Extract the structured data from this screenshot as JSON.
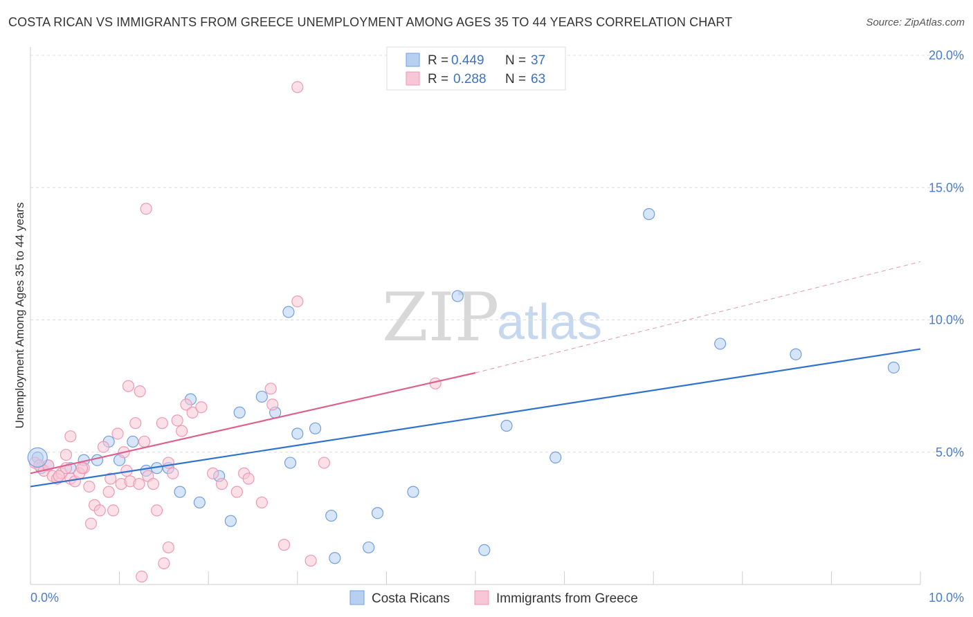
{
  "title": "COSTA RICAN VS IMMIGRANTS FROM GREECE UNEMPLOYMENT AMONG AGES 35 TO 44 YEARS CORRELATION CHART",
  "source": "Source: ZipAtlas.com",
  "watermark": {
    "zip": "ZIP",
    "atlas": "atlas"
  },
  "chart_data": {
    "type": "scatter",
    "xlabel": "",
    "ylabel": "Unemployment Among Ages 35 to 44 years",
    "xlim": [
      0,
      10
    ],
    "ylim": [
      0,
      20
    ],
    "x_tick_labels": {
      "left": "0.0%",
      "right": "10.0%"
    },
    "y_ticks": [
      {
        "value": 5,
        "label": "5.0%"
      },
      {
        "value": 10,
        "label": "10.0%"
      },
      {
        "value": 15,
        "label": "15.0%"
      },
      {
        "value": 20,
        "label": "20.0%"
      }
    ],
    "legend": {
      "position": "top-center",
      "entries": [
        {
          "r_label": "R =",
          "r": "0.449",
          "n_label": "N =",
          "n": "37"
        },
        {
          "r_label": "R =",
          "r": "0.288",
          "n_label": "N =",
          "n": "63"
        }
      ]
    },
    "series": [
      {
        "name": "Costa Ricans",
        "color": "#6f9fe0",
        "fill": "#b7d0f2",
        "line_color": "#2f72d0",
        "trend": {
          "x0": 0.0,
          "y0": 3.7,
          "x1": 10.0,
          "y1": 8.9
        },
        "points": [
          [
            0.08,
            4.8
          ],
          [
            0.12,
            4.4
          ],
          [
            0.2,
            4.5
          ],
          [
            0.45,
            4.4
          ],
          [
            0.6,
            4.7
          ],
          [
            0.75,
            4.7
          ],
          [
            0.88,
            5.4
          ],
          [
            1.0,
            4.7
          ],
          [
            1.15,
            5.4
          ],
          [
            1.3,
            4.3
          ],
          [
            1.42,
            4.4
          ],
          [
            1.55,
            4.4
          ],
          [
            1.68,
            3.5
          ],
          [
            1.8,
            7.0
          ],
          [
            1.9,
            3.1
          ],
          [
            2.12,
            4.1
          ],
          [
            2.25,
            2.4
          ],
          [
            2.35,
            6.5
          ],
          [
            2.6,
            7.1
          ],
          [
            2.75,
            6.5
          ],
          [
            2.9,
            10.3
          ],
          [
            2.92,
            4.6
          ],
          [
            3.0,
            5.7
          ],
          [
            3.2,
            5.9
          ],
          [
            3.38,
            2.6
          ],
          [
            3.42,
            1.0
          ],
          [
            3.8,
            1.4
          ],
          [
            3.9,
            2.7
          ],
          [
            4.3,
            3.5
          ],
          [
            4.8,
            10.9
          ],
          [
            5.1,
            1.3
          ],
          [
            5.35,
            6.0
          ],
          [
            5.9,
            4.8
          ],
          [
            6.95,
            14.0
          ],
          [
            7.75,
            9.1
          ],
          [
            8.6,
            8.7
          ],
          [
            9.7,
            8.2
          ]
        ]
      },
      {
        "name": "Immigrants from Greece",
        "color": "#ee99b4",
        "fill": "#f8c6d6",
        "line_color": "#e0608d",
        "trend": {
          "x0": 0.0,
          "y0": 4.2,
          "x1": 5.0,
          "y1": 8.0
        },
        "trend_ext": {
          "x0": 5.0,
          "y0": 8.0,
          "x1": 10.0,
          "y1": 12.2
        },
        "points": [
          [
            0.05,
            4.6
          ],
          [
            0.1,
            4.5
          ],
          [
            0.15,
            4.3
          ],
          [
            0.2,
            4.5
          ],
          [
            0.25,
            4.1
          ],
          [
            0.3,
            4.0
          ],
          [
            0.35,
            4.2
          ],
          [
            0.4,
            4.4
          ],
          [
            0.45,
            4.0
          ],
          [
            0.5,
            3.9
          ],
          [
            0.55,
            4.2
          ],
          [
            0.6,
            4.4
          ],
          [
            0.66,
            3.7
          ],
          [
            0.72,
            3.0
          ],
          [
            0.78,
            2.8
          ],
          [
            0.82,
            5.2
          ],
          [
            0.88,
            3.5
          ],
          [
            0.93,
            2.8
          ],
          [
            0.98,
            5.7
          ],
          [
            1.02,
            3.8
          ],
          [
            1.08,
            4.3
          ],
          [
            1.12,
            3.9
          ],
          [
            1.18,
            6.1
          ],
          [
            1.22,
            3.8
          ],
          [
            1.28,
            5.4
          ],
          [
            1.32,
            4.1
          ],
          [
            1.38,
            3.8
          ],
          [
            1.42,
            2.8
          ],
          [
            1.48,
            6.1
          ],
          [
            1.55,
            4.6
          ],
          [
            1.6,
            4.2
          ],
          [
            1.65,
            6.2
          ],
          [
            1.7,
            5.8
          ],
          [
            1.75,
            6.8
          ],
          [
            1.82,
            6.5
          ],
          [
            1.92,
            6.7
          ],
          [
            2.05,
            4.2
          ],
          [
            2.15,
            3.8
          ],
          [
            2.32,
            3.5
          ],
          [
            2.4,
            4.2
          ],
          [
            2.45,
            4.0
          ],
          [
            2.6,
            3.1
          ],
          [
            2.7,
            7.4
          ],
          [
            2.72,
            6.8
          ],
          [
            2.85,
            1.5
          ],
          [
            3.0,
            10.7
          ],
          [
            3.15,
            0.9
          ],
          [
            3.3,
            4.6
          ],
          [
            4.55,
            7.6
          ],
          [
            1.3,
            14.2
          ],
          [
            3.0,
            18.8
          ],
          [
            1.5,
            0.8
          ],
          [
            1.55,
            1.4
          ],
          [
            1.25,
            0.3
          ],
          [
            0.45,
            5.6
          ],
          [
            0.68,
            2.3
          ],
          [
            0.9,
            4.0
          ],
          [
            1.05,
            5.0
          ],
          [
            1.23,
            7.3
          ],
          [
            1.1,
            7.5
          ],
          [
            0.4,
            4.9
          ],
          [
            0.58,
            4.4
          ],
          [
            0.32,
            4.1
          ]
        ]
      }
    ]
  },
  "bottom_legend": [
    {
      "label": "Costa Ricans"
    },
    {
      "label": "Immigrants from Greece"
    }
  ]
}
